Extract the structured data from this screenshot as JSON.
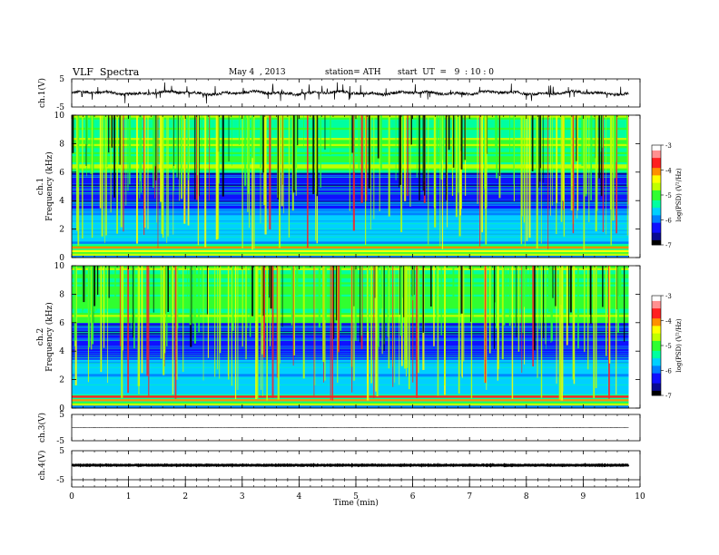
{
  "header": {
    "title": "VLF  Spectra",
    "date": "May 4  , 2013",
    "station": "station= ATH",
    "start": "start  UT  =   9  : 10 : 0"
  },
  "chart_data": [
    {
      "type": "line",
      "name": "ch1-waveform",
      "ylabel": "ch.1(V)",
      "ylim": [
        -5,
        5
      ],
      "yticks": [
        "5",
        "-5"
      ],
      "xlim": [
        0,
        10
      ],
      "baseline": 0,
      "approx_amplitude": 1
    },
    {
      "type": "heatmap",
      "name": "ch1-spectrogram",
      "ylabel": "Frequency  (kHz)",
      "channel": "ch.1",
      "ylim": [
        0,
        10
      ],
      "yticks": [
        "0",
        "2",
        "4",
        "6",
        "8",
        "10"
      ],
      "xlim": [
        0,
        10
      ],
      "colorbar": {
        "label": "log(PSD) (V²/Hz)",
        "ticks": [
          "-3",
          "-4",
          "-5",
          "-6",
          "-7"
        ],
        "range": [
          -7,
          -3
        ]
      }
    },
    {
      "type": "heatmap",
      "name": "ch2-spectrogram",
      "ylabel": "Frequency  (kHz)",
      "channel": "ch.2",
      "ylim": [
        0,
        10
      ],
      "yticks": [
        "0",
        "2",
        "4",
        "6",
        "8",
        "10"
      ],
      "xlim": [
        0,
        10
      ],
      "colorbar": {
        "label": "log(PSD) (V²/Hz)",
        "ticks": [
          "-3",
          "-4",
          "-5",
          "-6",
          "-7"
        ],
        "range": [
          -7,
          -3
        ]
      }
    },
    {
      "type": "line",
      "name": "ch3-waveform",
      "ylabel": "ch.3(V)",
      "ylim": [
        -5,
        5
      ],
      "yticks": [
        "5",
        "-5"
      ],
      "xlim": [
        0,
        10
      ],
      "baseline": 0,
      "approx_amplitude": 0.05
    },
    {
      "type": "line",
      "name": "ch4-waveform",
      "ylabel": "ch.4(V)",
      "ylim": [
        -5,
        5
      ],
      "yticks": [
        "5",
        "-5"
      ],
      "xlim": [
        0,
        10
      ],
      "baseline": 0,
      "approx_amplitude": 0.2
    }
  ],
  "xaxis": {
    "label": "Time  (min)",
    "ticks": [
      "0",
      "1",
      "2",
      "3",
      "4",
      "5",
      "6",
      "7",
      "8",
      "9",
      "10"
    ],
    "data_end": 9.8
  },
  "colormap": [
    "#000000",
    "#0a0a90",
    "#1010ff",
    "#0080ff",
    "#00d0ff",
    "#00ffa0",
    "#30ff30",
    "#c0ff00",
    "#ffff00",
    "#ff9000",
    "#ff2020",
    "#ff9090",
    "#ffffff"
  ]
}
